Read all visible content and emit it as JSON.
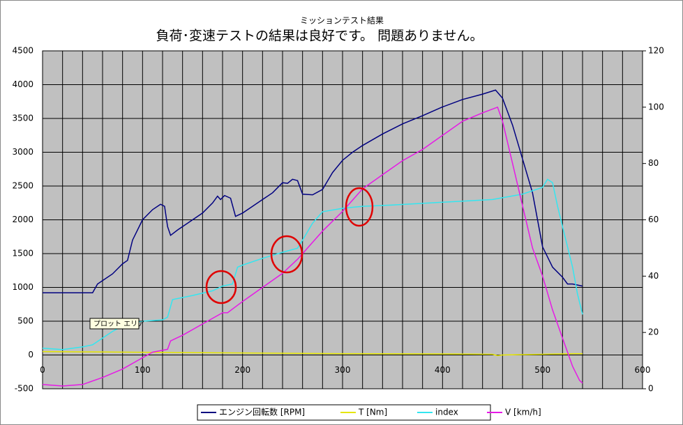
{
  "chart_data": {
    "type": "line",
    "title": "ミッションテスト結果",
    "subtitle": "負荷･変速テストの結果は良好です。 問題ありません。",
    "annotation": "プロット エリア",
    "xlim": [
      0,
      600
    ],
    "xticks": [
      0,
      100,
      200,
      300,
      400,
      500,
      600
    ],
    "xminorticks": [
      20,
      40,
      60,
      80,
      120,
      140,
      160,
      180,
      220,
      240,
      260,
      280,
      320,
      340,
      360,
      380,
      420,
      440,
      460,
      480,
      520,
      540,
      560,
      580
    ],
    "ylim": [
      -500,
      4500
    ],
    "yticks": [
      -500,
      0,
      500,
      1000,
      1500,
      2000,
      2500,
      3000,
      3500,
      4000,
      4500
    ],
    "y2lim": [
      0,
      120
    ],
    "y2ticks": [
      0,
      20,
      40,
      60,
      80,
      100,
      120
    ],
    "grid": true,
    "legend": "bottom",
    "series": [
      {
        "name": "エンジン回転数 [RPM]",
        "color": "#000080",
        "x": [
          0,
          50,
          55,
          60,
          70,
          80,
          85,
          90,
          100,
          110,
          118,
          122,
          125,
          128,
          135,
          150,
          160,
          170,
          175,
          178,
          182,
          188,
          193,
          200,
          210,
          220,
          230,
          240,
          245,
          250,
          255,
          260,
          270,
          280,
          290,
          300,
          310,
          320,
          340,
          360,
          380,
          400,
          420,
          440,
          453,
          460,
          470,
          480,
          490,
          500,
          510,
          520,
          525,
          530,
          540
        ],
        "values": [
          920,
          920,
          1050,
          1100,
          1200,
          1350,
          1400,
          1700,
          2000,
          2150,
          2230,
          2200,
          1900,
          1770,
          1850,
          2000,
          2100,
          2250,
          2350,
          2300,
          2360,
          2320,
          2050,
          2100,
          2200,
          2300,
          2400,
          2550,
          2540,
          2600,
          2580,
          2380,
          2370,
          2450,
          2700,
          2880,
          3000,
          3100,
          3270,
          3420,
          3540,
          3670,
          3780,
          3860,
          3920,
          3800,
          3400,
          2900,
          2400,
          1600,
          1300,
          1150,
          1050,
          1050,
          1020
        ]
      },
      {
        "name": "T [Nm]",
        "color": "#e6e600",
        "x": [
          0,
          100,
          200,
          300,
          400,
          450,
          455,
          460,
          500,
          530,
          540
        ],
        "values": [
          50,
          40,
          30,
          20,
          15,
          10,
          -10,
          0,
          10,
          20,
          20
        ]
      },
      {
        "name": "index",
        "color": "#33e6f0",
        "x": [
          0,
          20,
          40,
          50,
          60,
          70,
          80,
          90,
          100,
          120,
          125,
          130,
          150,
          170,
          180,
          190,
          195,
          200,
          220,
          240,
          255,
          260,
          270,
          280,
          300,
          320,
          350,
          400,
          450,
          480,
          500,
          505,
          510,
          515,
          520,
          530,
          535,
          540
        ],
        "values": [
          100,
          80,
          120,
          150,
          250,
          350,
          430,
          480,
          500,
          520,
          560,
          820,
          880,
          950,
          1020,
          1050,
          1300,
          1330,
          1430,
          1520,
          1580,
          1700,
          1950,
          2120,
          2170,
          2200,
          2220,
          2260,
          2300,
          2380,
          2480,
          2600,
          2550,
          2200,
          1900,
          1300,
          900,
          600
        ]
      },
      {
        "name": "V [km/h]",
        "color": "#e619e6",
        "axis": "y2",
        "x": [
          0,
          20,
          40,
          60,
          80,
          100,
          110,
          125,
          128,
          140,
          160,
          180,
          185,
          200,
          220,
          240,
          255,
          260,
          280,
          300,
          320,
          340,
          360,
          380,
          400,
          420,
          440,
          455,
          460,
          470,
          480,
          490,
          500,
          510,
          520,
          530,
          537,
          540
        ],
        "values": [
          1.5,
          1,
          1.5,
          4,
          7,
          11,
          13,
          14,
          17,
          19,
          23,
          27,
          27,
          31,
          36,
          41,
          46,
          48,
          56,
          63,
          71,
          76,
          81,
          85,
          90,
          95,
          98,
          100,
          95,
          80,
          65,
          50,
          40,
          28,
          18,
          8,
          3,
          2
        ]
      }
    ]
  }
}
